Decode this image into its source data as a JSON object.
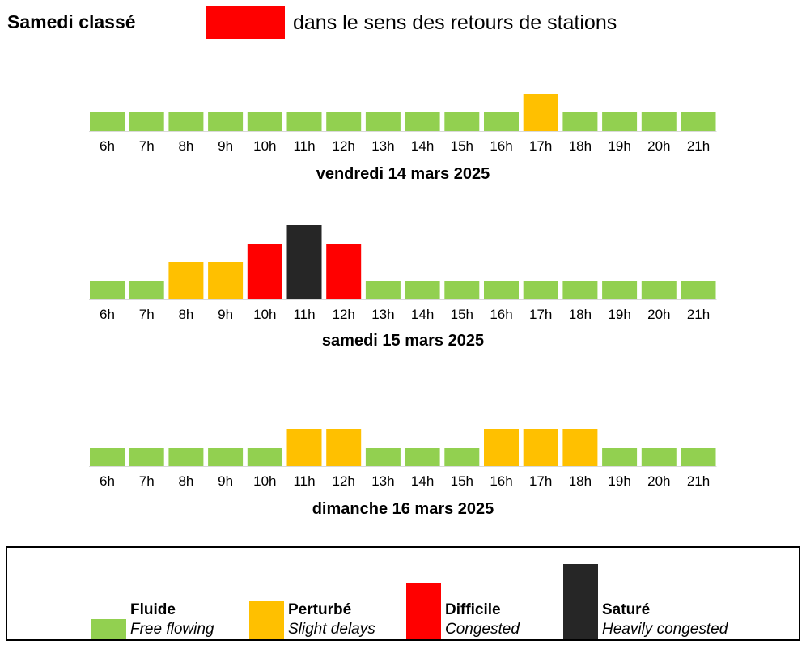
{
  "header": {
    "title": "Samedi classé",
    "swatch_color": "#ff0000",
    "description": "dans le sens des retours de stations"
  },
  "levels": {
    "fluide": {
      "rank": 1,
      "color": "#92d050"
    },
    "perturbe": {
      "rank": 2,
      "color": "#ffc000"
    },
    "difficile": {
      "rank": 3,
      "color": "#ff0000"
    },
    "sature": {
      "rank": 4,
      "color": "#262626"
    }
  },
  "chart_data": [
    {
      "type": "bar",
      "title": "vendredi 14 mars 2025",
      "categories": [
        "6h",
        "7h",
        "8h",
        "9h",
        "10h",
        "11h",
        "12h",
        "13h",
        "14h",
        "15h",
        "16h",
        "17h",
        "18h",
        "19h",
        "20h",
        "21h"
      ],
      "levels": [
        "fluide",
        "fluide",
        "fluide",
        "fluide",
        "fluide",
        "fluide",
        "fluide",
        "fluide",
        "fluide",
        "fluide",
        "fluide",
        "perturbe",
        "fluide",
        "fluide",
        "fluide",
        "fluide"
      ]
    },
    {
      "type": "bar",
      "title": "samedi 15 mars 2025",
      "categories": [
        "6h",
        "7h",
        "8h",
        "9h",
        "10h",
        "11h",
        "12h",
        "13h",
        "14h",
        "15h",
        "16h",
        "17h",
        "18h",
        "19h",
        "20h",
        "21h"
      ],
      "levels": [
        "fluide",
        "fluide",
        "perturbe",
        "perturbe",
        "difficile",
        "sature",
        "difficile",
        "fluide",
        "fluide",
        "fluide",
        "fluide",
        "fluide",
        "fluide",
        "fluide",
        "fluide",
        "fluide"
      ]
    },
    {
      "type": "bar",
      "title": "dimanche 16 mars 2025",
      "categories": [
        "6h",
        "7h",
        "8h",
        "9h",
        "10h",
        "11h",
        "12h",
        "13h",
        "14h",
        "15h",
        "16h",
        "17h",
        "18h",
        "19h",
        "20h",
        "21h"
      ],
      "levels": [
        "fluide",
        "fluide",
        "fluide",
        "fluide",
        "fluide",
        "perturbe",
        "perturbe",
        "fluide",
        "fluide",
        "fluide",
        "perturbe",
        "perturbe",
        "perturbe",
        "fluide",
        "fluide",
        "fluide"
      ]
    }
  ],
  "legend": [
    {
      "level": "fluide",
      "name": "Fluide",
      "translation": "Free flowing"
    },
    {
      "level": "perturbe",
      "name": "Perturbé",
      "translation": "Slight delays"
    },
    {
      "level": "difficile",
      "name": "Difficile",
      "translation": "Congested"
    },
    {
      "level": "sature",
      "name": "Saturé",
      "translation": "Heavily congested"
    }
  ]
}
